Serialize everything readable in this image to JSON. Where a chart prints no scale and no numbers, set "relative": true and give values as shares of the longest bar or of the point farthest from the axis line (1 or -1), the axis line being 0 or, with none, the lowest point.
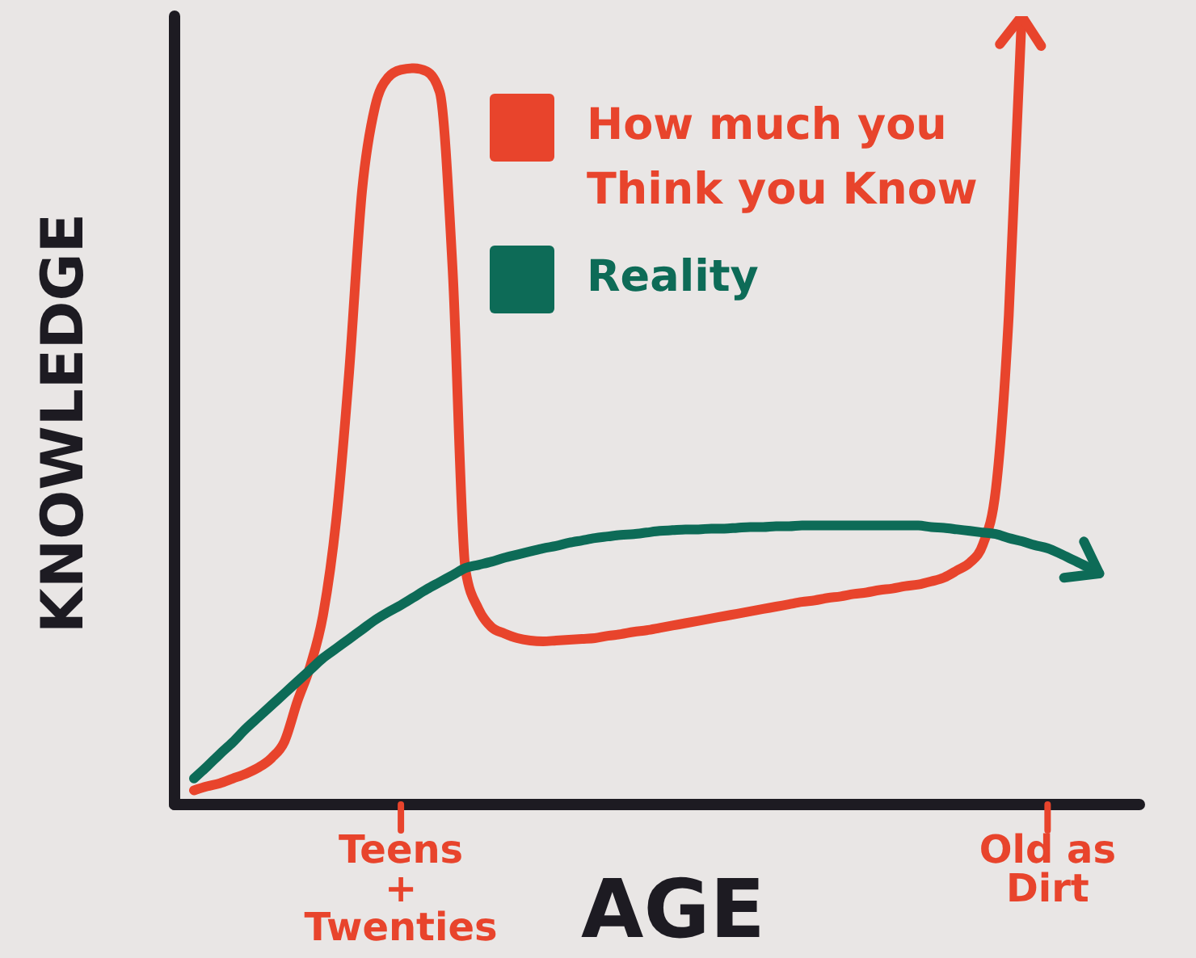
{
  "chart_data": {
    "type": "line",
    "xlabel": "AGE",
    "ylabel": "KNOWLEDGE",
    "relative": true,
    "legend": "top right",
    "categories": [
      null,
      null,
      null,
      null,
      null,
      null,
      null,
      null,
      null,
      null,
      null,
      null,
      null,
      null,
      null,
      null,
      "Teens + Twenties",
      null,
      null,
      null,
      null,
      null,
      null,
      null,
      null,
      null,
      null,
      null,
      null,
      null,
      null,
      null,
      null,
      null,
      null,
      null,
      null,
      null,
      null,
      null,
      null,
      null,
      null,
      null,
      null,
      null,
      null,
      null,
      null,
      null,
      null,
      null,
      null,
      null,
      null,
      null,
      null,
      null,
      null,
      null,
      null,
      null,
      null,
      null,
      null,
      null,
      "Old as Dirt",
      null,
      null,
      null,
      null
    ],
    "series": [
      {
        "name": "How much you Think you Know",
        "color": "#e8442c",
        "values": [
          0.018,
          0.023,
          0.027,
          0.033,
          0.039,
          0.047,
          0.059,
          0.08,
          0.131,
          0.176,
          0.242,
          0.361,
          0.549,
          0.779,
          0.885,
          0.922,
          0.932,
          0.934,
          0.93,
          0.904,
          0.678,
          0.297,
          0.248,
          0.225,
          0.217,
          0.211,
          0.208,
          0.207,
          0.208,
          0.209,
          0.21,
          0.211,
          0.214,
          0.216,
          0.219,
          0.221,
          0.224,
          0.227,
          0.23,
          0.233,
          0.236,
          0.239,
          0.242,
          0.245,
          0.248,
          0.251,
          0.254,
          0.257,
          0.259,
          0.262,
          0.264,
          0.267,
          0.269,
          0.272,
          0.274,
          0.277,
          0.279,
          0.283,
          0.288,
          0.297,
          0.307,
          0.33,
          0.4,
          0.621,
          1,
          null,
          null,
          null,
          null,
          null,
          null
        ]
      },
      {
        "name": "Reality",
        "color": "#0d6b57",
        "values": [
          0.033,
          0.048,
          0.064,
          0.079,
          0.096,
          0.111,
          0.126,
          0.141,
          0.156,
          0.171,
          0.186,
          0.198,
          0.21,
          0.222,
          0.234,
          0.244,
          0.253,
          0.263,
          0.273,
          0.282,
          0.291,
          0.3,
          0.304,
          0.308,
          0.313,
          0.317,
          0.321,
          0.325,
          0.328,
          0.332,
          0.335,
          0.338,
          0.34,
          0.342,
          0.343,
          0.345,
          0.347,
          0.348,
          0.349,
          0.349,
          0.35,
          0.35,
          0.351,
          0.352,
          0.352,
          0.353,
          0.353,
          0.354,
          0.354,
          0.354,
          0.354,
          0.354,
          0.354,
          0.354,
          0.354,
          0.354,
          0.354,
          0.352,
          0.351,
          0.349,
          0.347,
          0.345,
          0.343,
          0.338,
          0.334,
          0.329,
          0.325,
          0.318,
          0.31,
          0.302,
          0.293
        ]
      }
    ]
  }
}
